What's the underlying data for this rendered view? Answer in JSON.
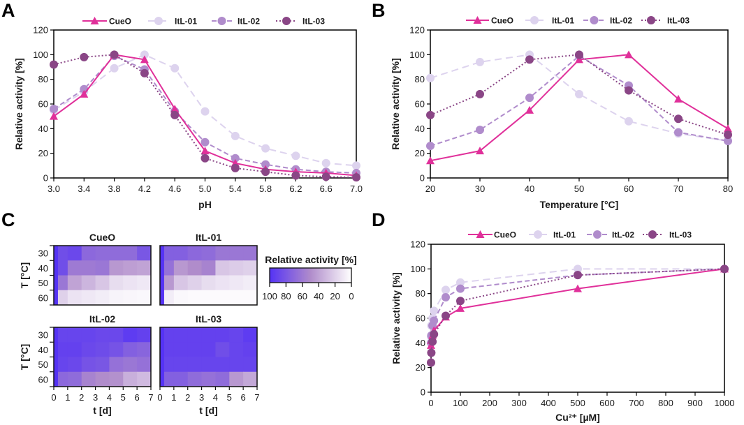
{
  "panel_labels": [
    "A",
    "B",
    "C",
    "D"
  ],
  "chart_data": [
    {
      "type": "line",
      "panel": "A",
      "xlabel": "pH",
      "ylabel": "Relative activity [%]",
      "x": [
        3.0,
        3.4,
        3.8,
        4.2,
        4.6,
        5.0,
        5.4,
        5.8,
        6.2,
        6.6,
        7.0
      ],
      "xlim": [
        3.0,
        7.0
      ],
      "ylim": [
        0,
        120
      ],
      "xtick_values": [
        3.0,
        3.4,
        3.8,
        4.2,
        4.6,
        5.0,
        5.4,
        5.8,
        6.2,
        6.6,
        7.0
      ],
      "xtick_labels": [
        "3.0",
        "3.4",
        "3.8",
        "4.2",
        "4.6",
        "5.0",
        "5.4",
        "5.8",
        "6.2",
        "6.6",
        "7.0"
      ],
      "ytick_values": [
        0,
        20,
        40,
        60,
        80,
        100,
        120
      ],
      "ytick_labels": [
        "0",
        "20",
        "40",
        "60",
        "80",
        "100",
        "120"
      ],
      "legend": "top",
      "grid": false,
      "series": [
        {
          "name": "CueO",
          "values": [
            50,
            68,
            100,
            96,
            56,
            22,
            12,
            7,
            5,
            4,
            2
          ]
        },
        {
          "name": "ItL-01",
          "values": [
            55,
            70,
            89,
            100,
            89,
            54,
            34,
            24,
            18,
            12,
            10
          ]
        },
        {
          "name": "ItL-02",
          "values": [
            56,
            72,
            99,
            88,
            54,
            29,
            16,
            11,
            7,
            5,
            4
          ]
        },
        {
          "name": "ItL-03",
          "values": [
            92,
            98,
            100,
            85,
            51,
            16,
            8,
            5,
            2,
            1,
            0.5
          ]
        }
      ]
    },
    {
      "type": "line",
      "panel": "B",
      "xlabel": "Temperature [°C]",
      "ylabel": "Relative activity [%]",
      "x": [
        20,
        30,
        40,
        50,
        60,
        70,
        80
      ],
      "xlim": [
        20,
        80
      ],
      "ylim": [
        0,
        120
      ],
      "xtick_values": [
        20,
        30,
        40,
        50,
        60,
        70,
        80
      ],
      "xtick_labels": [
        "20",
        "30",
        "40",
        "50",
        "60",
        "70",
        "80"
      ],
      "ytick_values": [
        0,
        20,
        40,
        60,
        80,
        100,
        120
      ],
      "ytick_labels": [
        "0",
        "20",
        "40",
        "60",
        "80",
        "100",
        "120"
      ],
      "legend": "top",
      "grid": false,
      "series": [
        {
          "name": "CueO",
          "values": [
            14,
            22,
            55,
            96,
            100,
            64,
            40
          ]
        },
        {
          "name": "ItL-01",
          "values": [
            81,
            94,
            100,
            68,
            46,
            36,
            30
          ]
        },
        {
          "name": "ItL-02",
          "values": [
            26,
            39,
            65,
            99,
            75,
            37,
            30
          ]
        },
        {
          "name": "ItL-03",
          "values": [
            51,
            68,
            96,
            100,
            71,
            48,
            35
          ]
        }
      ]
    },
    {
      "type": "heatmap",
      "panel": "C",
      "xlabel": "t [d]",
      "ylabel": "T [°C]",
      "xtick_labels": [
        "0",
        "1",
        "2",
        "3",
        "4",
        "5",
        "6",
        "7"
      ],
      "ytick_labels": [
        "30",
        "40",
        "50",
        "60"
      ],
      "time_points": [
        0,
        0.3,
        1,
        2,
        3,
        4,
        5,
        6
      ],
      "xlim": [
        0,
        7
      ],
      "colorbar": {
        "title": "Relative activity [%]",
        "tick_labels": [
          "100",
          "80",
          "60",
          "40",
          "20",
          "0"
        ],
        "colors": {
          "100": "#5533f5",
          "50": "#b08ccb",
          "0": "#ffffff"
        }
      },
      "panels": [
        {
          "title": "CueO",
          "values": [
            [
              100,
              85,
              88,
              70,
              68,
              68,
              68,
              80
            ],
            [
              100,
              85,
              60,
              60,
              62,
              45,
              42,
              40
            ],
            [
              100,
              62,
              40,
              32,
              25,
              15,
              12,
              10
            ],
            [
              100,
              20,
              12,
              10,
              8,
              5,
              4,
              3
            ]
          ]
        },
        {
          "title": "ItL-01",
          "values": [
            [
              100,
              75,
              75,
              70,
              68,
              62,
              62,
              62
            ],
            [
              100,
              65,
              45,
              50,
              55,
              25,
              22,
              20
            ],
            [
              100,
              45,
              25,
              20,
              15,
              12,
              10,
              8
            ],
            [
              100,
              8,
              3,
              2,
              2,
              2,
              2,
              2
            ]
          ]
        },
        {
          "title": "ItL-02",
          "values": [
            [
              100,
              90,
              90,
              90,
              88,
              88,
              95,
              92
            ],
            [
              100,
              92,
              92,
              88,
              86,
              82,
              75,
              72
            ],
            [
              100,
              90,
              88,
              82,
              80,
              65,
              62,
              65
            ],
            [
              100,
              70,
              68,
              55,
              50,
              48,
              35,
              30
            ]
          ]
        },
        {
          "title": "ItL-03",
          "values": [
            [
              100,
              92,
              92,
              92,
              92,
              92,
              90,
              95
            ],
            [
              100,
              92,
              92,
              92,
              92,
              85,
              90,
              92
            ],
            [
              100,
              90,
              90,
              90,
              90,
              90,
              90,
              90
            ],
            [
              100,
              75,
              75,
              68,
              65,
              68,
              45,
              38
            ]
          ]
        }
      ]
    },
    {
      "type": "line",
      "panel": "D",
      "xlabel": "Cu²⁺ [µM]",
      "ylabel": "Relative activity [%]",
      "x": [
        0,
        1,
        5,
        10,
        50,
        100,
        500,
        1000
      ],
      "xlim": [
        0,
        1000
      ],
      "ylim": [
        0,
        120
      ],
      "xtick_values": [
        0,
        100,
        200,
        300,
        400,
        500,
        600,
        700,
        800,
        900,
        1000
      ],
      "xtick_labels": [
        "0",
        "100",
        "200",
        "300",
        "400",
        "500",
        "600",
        "700",
        "800",
        "900",
        "1000"
      ],
      "ytick_values": [
        0,
        20,
        40,
        60,
        80,
        100,
        120
      ],
      "ytick_labels": [
        "0",
        "20",
        "40",
        "60",
        "80",
        "100",
        "120"
      ],
      "legend": "top",
      "grid": false,
      "series": [
        {
          "name": "CueO",
          "values": [
            38,
            42,
            46,
            50,
            61,
            68,
            84,
            100
          ]
        },
        {
          "name": "ItL-01",
          "values": [
            45,
            54,
            60,
            66,
            83,
            89,
            100,
            100
          ]
        },
        {
          "name": "ItL-02",
          "values": [
            40,
            46,
            54,
            58,
            77,
            84,
            95,
            100
          ]
        },
        {
          "name": "ItL-03",
          "values": [
            24,
            32,
            41,
            47,
            62,
            74,
            95,
            100
          ]
        }
      ]
    }
  ],
  "series_styles": [
    {
      "color": "#e0309a",
      "marker": "triangle",
      "line": "solid"
    },
    {
      "color": "#ddd3ee",
      "marker": "circle",
      "line": "long-dash"
    },
    {
      "color": "#b08ccc",
      "marker": "circle",
      "line": "dash"
    },
    {
      "color": "#8a4686",
      "marker": "circle",
      "line": "dotted"
    }
  ]
}
